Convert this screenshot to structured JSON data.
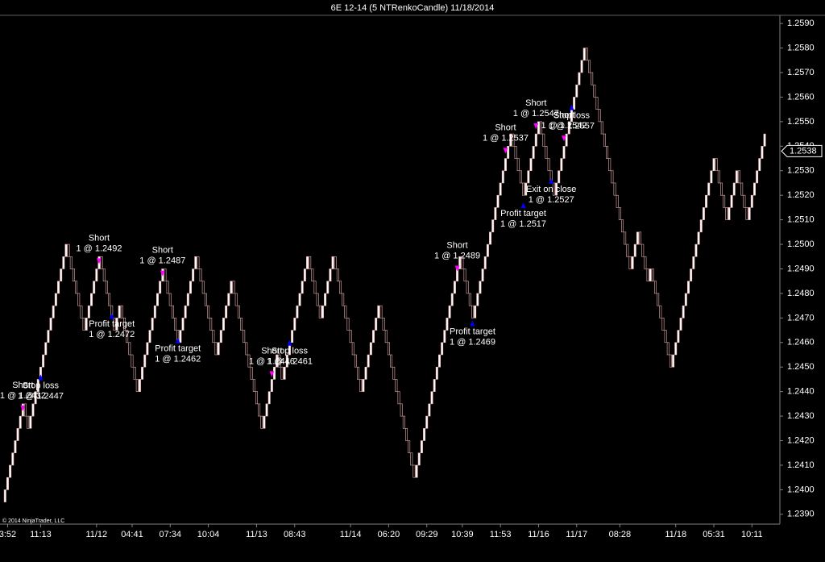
{
  "chart_data": {
    "type": "renko",
    "title": "6E 12-14 (5 NTRenkoCandle)  11/18/2014",
    "copyright": "© 2014 NinjaTrader, LLC",
    "brick_size": 0.0005,
    "up_color": "#ffffff",
    "down_color": "#e8b0b0",
    "ylim": [
      1.2386,
      1.2593
    ],
    "yticks": [
      {
        "value": 1.239,
        "label": "1.2390"
      },
      {
        "value": 1.24,
        "label": "1.2400"
      },
      {
        "value": 1.241,
        "label": "1.2410"
      },
      {
        "value": 1.242,
        "label": "1.2420"
      },
      {
        "value": 1.243,
        "label": "1.2430"
      },
      {
        "value": 1.244,
        "label": "1.2440"
      },
      {
        "value": 1.245,
        "label": "1.2450"
      },
      {
        "value": 1.246,
        "label": "1.2460"
      },
      {
        "value": 1.247,
        "label": "1.2470"
      },
      {
        "value": 1.248,
        "label": "1.2480"
      },
      {
        "value": 1.249,
        "label": "1.2490"
      },
      {
        "value": 1.25,
        "label": "1.2500"
      },
      {
        "value": 1.251,
        "label": "1.2510"
      },
      {
        "value": 1.252,
        "label": "1.2520"
      },
      {
        "value": 1.253,
        "label": "1.2530"
      },
      {
        "value": 1.254,
        "label": "1.2540"
      },
      {
        "value": 1.255,
        "label": "1.2550"
      },
      {
        "value": 1.256,
        "label": "1.2560"
      },
      {
        "value": 1.257,
        "label": "1.2570"
      },
      {
        "value": 1.258,
        "label": "1.2580"
      },
      {
        "value": 1.259,
        "label": "1.2590"
      }
    ],
    "xlim": [
      -2,
      305
    ],
    "xticks": [
      {
        "value": 1,
        "label": "3:52"
      },
      {
        "value": 14,
        "label": "11:13"
      },
      {
        "value": 36,
        "label": "11/12"
      },
      {
        "value": 50,
        "label": "04:41"
      },
      {
        "value": 65,
        "label": "07:34"
      },
      {
        "value": 80,
        "label": "10:04"
      },
      {
        "value": 99,
        "label": "11/13"
      },
      {
        "value": 114,
        "label": "08:43"
      },
      {
        "value": 136,
        "label": "11/14"
      },
      {
        "value": 151,
        "label": "06:20"
      },
      {
        "value": 166,
        "label": "09:29"
      },
      {
        "value": 180,
        "label": "10:39"
      },
      {
        "value": 195,
        "label": "11:53"
      },
      {
        "value": 210,
        "label": "11/16"
      },
      {
        "value": 225,
        "label": "11/17"
      },
      {
        "value": 242,
        "label": "08:28"
      },
      {
        "value": 264,
        "label": "11/18"
      },
      {
        "value": 279,
        "label": "05:31"
      },
      {
        "value": 294,
        "label": "10:11"
      }
    ],
    "last_price": {
      "value": 1.2538,
      "label": "1.2538"
    },
    "values": [
      1.24,
      1.2405,
      1.241,
      1.2415,
      1.242,
      1.2425,
      1.243,
      1.2435,
      1.243,
      1.2425,
      1.243,
      1.2435,
      1.244,
      1.2445,
      1.245,
      1.2455,
      1.246,
      1.2465,
      1.247,
      1.2475,
      1.248,
      1.2485,
      1.249,
      1.2495,
      1.25,
      1.2495,
      1.249,
      1.2485,
      1.248,
      1.2475,
      1.247,
      1.2465,
      1.247,
      1.2475,
      1.248,
      1.2485,
      1.249,
      1.2495,
      1.249,
      1.2485,
      1.248,
      1.2475,
      1.247,
      1.2465,
      1.247,
      1.2475,
      1.247,
      1.2465,
      1.246,
      1.2455,
      1.245,
      1.2445,
      1.244,
      1.2445,
      1.245,
      1.2455,
      1.246,
      1.2465,
      1.247,
      1.2475,
      1.248,
      1.2485,
      1.249,
      1.2485,
      1.248,
      1.2475,
      1.247,
      1.2465,
      1.246,
      1.2465,
      1.247,
      1.2475,
      1.248,
      1.2485,
      1.249,
      1.2495,
      1.249,
      1.2485,
      1.248,
      1.2475,
      1.247,
      1.2465,
      1.246,
      1.2455,
      1.246,
      1.2465,
      1.247,
      1.2475,
      1.248,
      1.2485,
      1.248,
      1.2475,
      1.247,
      1.2465,
      1.246,
      1.2455,
      1.245,
      1.2445,
      1.244,
      1.2435,
      1.243,
      1.2425,
      1.243,
      1.2435,
      1.244,
      1.2445,
      1.245,
      1.2455,
      1.245,
      1.2445,
      1.245,
      1.2455,
      1.246,
      1.2465,
      1.247,
      1.2475,
      1.248,
      1.2485,
      1.249,
      1.2495,
      1.249,
      1.2485,
      1.248,
      1.2475,
      1.247,
      1.2475,
      1.248,
      1.2485,
      1.249,
      1.2495,
      1.249,
      1.2485,
      1.248,
      1.2475,
      1.247,
      1.2465,
      1.246,
      1.2455,
      1.245,
      1.2445,
      1.244,
      1.2445,
      1.245,
      1.2455,
      1.246,
      1.2465,
      1.247,
      1.2475,
      1.247,
      1.2465,
      1.246,
      1.2455,
      1.245,
      1.2445,
      1.244,
      1.2435,
      1.243,
      1.2425,
      1.242,
      1.2415,
      1.241,
      1.2405,
      1.241,
      1.2415,
      1.242,
      1.2425,
      1.243,
      1.2435,
      1.244,
      1.2445,
      1.245,
      1.2455,
      1.246,
      1.2465,
      1.247,
      1.2475,
      1.248,
      1.2485,
      1.249,
      1.2495,
      1.249,
      1.2485,
      1.248,
      1.2475,
      1.247,
      1.2475,
      1.248,
      1.2485,
      1.249,
      1.2495,
      1.25,
      1.2505,
      1.251,
      1.2515,
      1.252,
      1.2525,
      1.253,
      1.2535,
      1.254,
      1.2545,
      1.254,
      1.2535,
      1.253,
      1.2525,
      1.252,
      1.2525,
      1.253,
      1.2535,
      1.254,
      1.2545,
      1.255,
      1.2545,
      1.254,
      1.2535,
      1.253,
      1.2525,
      1.252,
      1.2525,
      1.253,
      1.2535,
      1.254,
      1.2545,
      1.255,
      1.2555,
      1.256,
      1.2565,
      1.257,
      1.2575,
      1.258,
      1.2575,
      1.257,
      1.2565,
      1.256,
      1.2555,
      1.255,
      1.2545,
      1.254,
      1.2535,
      1.253,
      1.2525,
      1.252,
      1.2515,
      1.251,
      1.2505,
      1.25,
      1.2495,
      1.249,
      1.2495,
      1.25,
      1.2505,
      1.25,
      1.2495,
      1.249,
      1.2485,
      1.249,
      1.2485,
      1.248,
      1.2475,
      1.247,
      1.2465,
      1.246,
      1.2455,
      1.245,
      1.2455,
      1.246,
      1.2465,
      1.247,
      1.2475,
      1.248,
      1.2485,
      1.249,
      1.2495,
      1.25,
      1.2505,
      1.251,
      1.2515,
      1.252,
      1.2525,
      1.253,
      1.2535,
      1.253,
      1.2525,
      1.252,
      1.2515,
      1.251,
      1.2515,
      1.252,
      1.2525,
      1.253,
      1.2525,
      1.252,
      1.2515,
      1.251,
      1.2515,
      1.252,
      1.2525,
      1.253,
      1.2535,
      1.254,
      1.2545
    ],
    "annotations": [
      {
        "bar": 7,
        "price": 1.2432,
        "action": "Short",
        "label": "1 @ 1.2432",
        "color": "#ff00ff",
        "position": "above"
      },
      {
        "bar": 14,
        "price": 1.2447,
        "action": "Stop loss",
        "label": "1 @ 1.2447",
        "color": "#0000ff",
        "position": "below"
      },
      {
        "bar": 37,
        "price": 1.2492,
        "action": "Short",
        "label": "1 @ 1.2492",
        "color": "#ff00ff",
        "position": "above"
      },
      {
        "bar": 42,
        "price": 1.2472,
        "action": "Profit target",
        "label": "1 @ 1.2472",
        "color": "#0000ff",
        "position": "below"
      },
      {
        "bar": 62,
        "price": 1.2487,
        "action": "Short",
        "label": "1 @ 1.2487",
        "color": "#ff00ff",
        "position": "above"
      },
      {
        "bar": 68,
        "price": 1.2462,
        "action": "Profit target",
        "label": "1 @ 1.2462",
        "color": "#0000ff",
        "position": "below"
      },
      {
        "bar": 105,
        "price": 1.2446,
        "action": "Short",
        "label": "1 @ 1.2446",
        "color": "#ff00ff",
        "position": "above"
      },
      {
        "bar": 112,
        "price": 1.2461,
        "action": "Stop loss",
        "label": "1 @ 1.2461",
        "color": "#0000ff",
        "position": "below"
      },
      {
        "bar": 178,
        "price": 1.2489,
        "action": "Short",
        "label": "1 @ 1.2489",
        "color": "#ff00ff",
        "position": "above"
      },
      {
        "bar": 184,
        "price": 1.2469,
        "action": "Profit target",
        "label": "1 @ 1.2469",
        "color": "#0000ff",
        "position": "below"
      },
      {
        "bar": 197,
        "price": 1.2537,
        "action": "Short",
        "label": "1 @ 1.2537",
        "color": "#ff00ff",
        "position": "above"
      },
      {
        "bar": 204,
        "price": 1.2517,
        "action": "Profit target",
        "label": "1 @ 1.2517",
        "color": "#0000ff",
        "position": "below"
      },
      {
        "bar": 209,
        "price": 1.2547,
        "action": "Short",
        "label": "1 @ 1.2547",
        "color": "#ff00ff",
        "position": "above"
      },
      {
        "bar": 215,
        "price": 1.2527,
        "action": "Exit on close",
        "label": "1 @ 1.2527",
        "color": "#0000ff",
        "position": "below"
      },
      {
        "bar": 220,
        "price": 1.2542,
        "action": "Short",
        "label": "1 @ 1.2542",
        "color": "#ff00ff",
        "position": "above"
      },
      {
        "bar": 223,
        "price": 1.2557,
        "action": "Stop loss",
        "label": "1 @ 1.2557",
        "color": "#0000ff",
        "position": "below"
      }
    ]
  }
}
